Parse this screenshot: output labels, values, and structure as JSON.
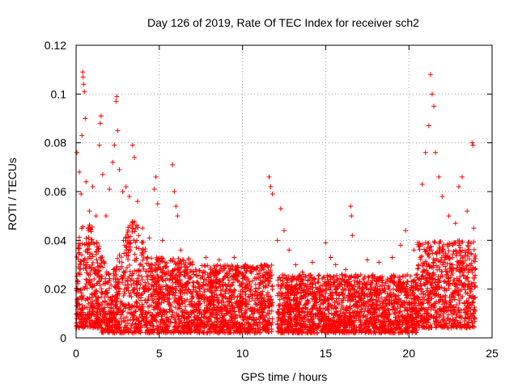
{
  "chart_data": {
    "type": "scatter",
    "title": "Day 126 of 2019, Rate Of TEC Index for receiver sch2",
    "xlabel": "GPS time / hours",
    "ylabel": "ROTI / TECUs",
    "xlim": [
      0,
      25
    ],
    "ylim": [
      0,
      0.12
    ],
    "x_ticks": [
      0,
      5,
      10,
      15,
      20,
      25
    ],
    "x_tick_labels": [
      "0",
      "5",
      "10",
      "15",
      "20",
      "25"
    ],
    "y_ticks": [
      0,
      0.02,
      0.04,
      0.06,
      0.08,
      0.1,
      0.12
    ],
    "y_tick_labels": [
      "0",
      "0.02",
      "0.04",
      "0.06",
      "0.08",
      "0.1",
      "0.12"
    ],
    "grid": true,
    "marker": "+",
    "color": "#ff0000",
    "data_gap_hours": [
      11.8,
      12.1
    ],
    "series": [
      {
        "name": "ROTI sch2",
        "points": [
          [
            0.05,
            0.076
          ],
          [
            0.2,
            0.068
          ],
          [
            0.3,
            0.059
          ],
          [
            0.35,
            0.083
          ],
          [
            0.4,
            0.109
          ],
          [
            0.42,
            0.107
          ],
          [
            0.45,
            0.104
          ],
          [
            0.5,
            0.101
          ],
          [
            0.55,
            0.09
          ],
          [
            0.6,
            0.064
          ],
          [
            0.8,
            0.052
          ],
          [
            1.0,
            0.062
          ],
          [
            1.2,
            0.05
          ],
          [
            1.4,
            0.079
          ],
          [
            1.45,
            0.088
          ],
          [
            1.5,
            0.091
          ],
          [
            1.6,
            0.067
          ],
          [
            1.8,
            0.05
          ],
          [
            2.0,
            0.061
          ],
          [
            2.2,
            0.072
          ],
          [
            2.3,
            0.079
          ],
          [
            2.4,
            0.097
          ],
          [
            2.45,
            0.099
          ],
          [
            2.5,
            0.085
          ],
          [
            2.6,
            0.069
          ],
          [
            2.8,
            0.06
          ],
          [
            3.0,
            0.062
          ],
          [
            3.2,
            0.058
          ],
          [
            3.4,
            0.079
          ],
          [
            3.5,
            0.074
          ],
          [
            3.7,
            0.056
          ],
          [
            4.0,
            0.045
          ],
          [
            4.4,
            0.041
          ],
          [
            4.7,
            0.061
          ],
          [
            4.8,
            0.066
          ],
          [
            4.9,
            0.055
          ],
          [
            5.2,
            0.04
          ],
          [
            5.8,
            0.071
          ],
          [
            5.9,
            0.06
          ],
          [
            6.0,
            0.054
          ],
          [
            6.1,
            0.05
          ],
          [
            6.3,
            0.036
          ],
          [
            7.0,
            0.03
          ],
          [
            7.8,
            0.033
          ],
          [
            8.6,
            0.032
          ],
          [
            9.5,
            0.033
          ],
          [
            10.2,
            0.03
          ],
          [
            11.2,
            0.029
          ],
          [
            11.6,
            0.066
          ],
          [
            11.7,
            0.062
          ],
          [
            11.8,
            0.059
          ],
          [
            12.1,
            0.04
          ],
          [
            12.3,
            0.053
          ],
          [
            12.5,
            0.044
          ],
          [
            12.8,
            0.036
          ],
          [
            13.2,
            0.03
          ],
          [
            13.6,
            0.027
          ],
          [
            14.2,
            0.031
          ],
          [
            15.0,
            0.039
          ],
          [
            15.3,
            0.033
          ],
          [
            15.6,
            0.03
          ],
          [
            16.2,
            0.028
          ],
          [
            16.5,
            0.054
          ],
          [
            16.55,
            0.05
          ],
          [
            16.6,
            0.042
          ],
          [
            17.5,
            0.032
          ],
          [
            18.2,
            0.031
          ],
          [
            19.0,
            0.033
          ],
          [
            19.5,
            0.038
          ],
          [
            19.8,
            0.044
          ],
          [
            20.3,
            0.036
          ],
          [
            20.8,
            0.063
          ],
          [
            21.0,
            0.076
          ],
          [
            21.2,
            0.087
          ],
          [
            21.3,
            0.108
          ],
          [
            21.4,
            0.1
          ],
          [
            21.5,
            0.095
          ],
          [
            21.6,
            0.076
          ],
          [
            21.8,
            0.066
          ],
          [
            22.0,
            0.058
          ],
          [
            22.4,
            0.05
          ],
          [
            22.8,
            0.047
          ],
          [
            23.0,
            0.062
          ],
          [
            23.2,
            0.066
          ],
          [
            23.5,
            0.052
          ],
          [
            23.8,
            0.08
          ],
          [
            23.85,
            0.079
          ],
          [
            23.9,
            0.045
          ]
        ]
      }
    ]
  }
}
